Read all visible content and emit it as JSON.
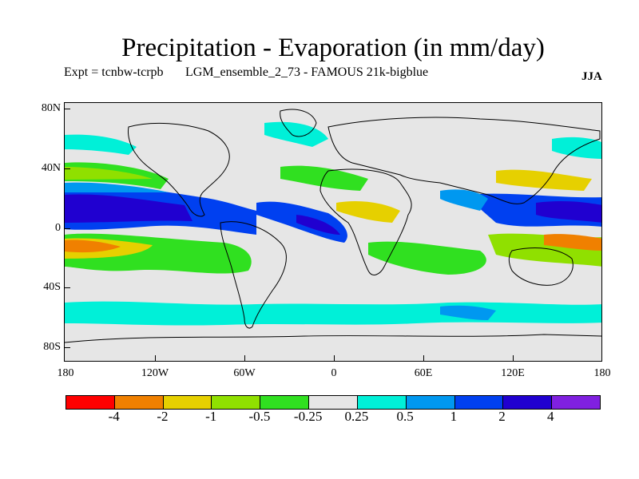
{
  "title": "Precipitation - Evaporation (in mm/day)",
  "subtitle_left": "Expt = tcnbw-tcrpb",
  "subtitle_mid": "LGM_ensemble_2_73 - FAMOUS 21k-bigblue",
  "season": "JJA",
  "y_axis_labels": [
    "80N",
    "40N",
    "0",
    "40S",
    "80S"
  ],
  "x_axis_labels": [
    "180",
    "120W",
    "60W",
    "0",
    "60E",
    "120E",
    "180"
  ],
  "colorbar": {
    "colors": [
      "#ff0000",
      "#f08000",
      "#e6d000",
      "#90e000",
      "#30e020",
      "#e6e6e6",
      "#00f0d8",
      "#0098f0",
      "#0040f0",
      "#2000d0",
      "#8020e0"
    ],
    "labels": [
      "-4",
      "-2",
      "-1",
      "-0.5",
      "-0.25",
      "0.25",
      "0.5",
      "1",
      "2",
      "4"
    ]
  }
}
